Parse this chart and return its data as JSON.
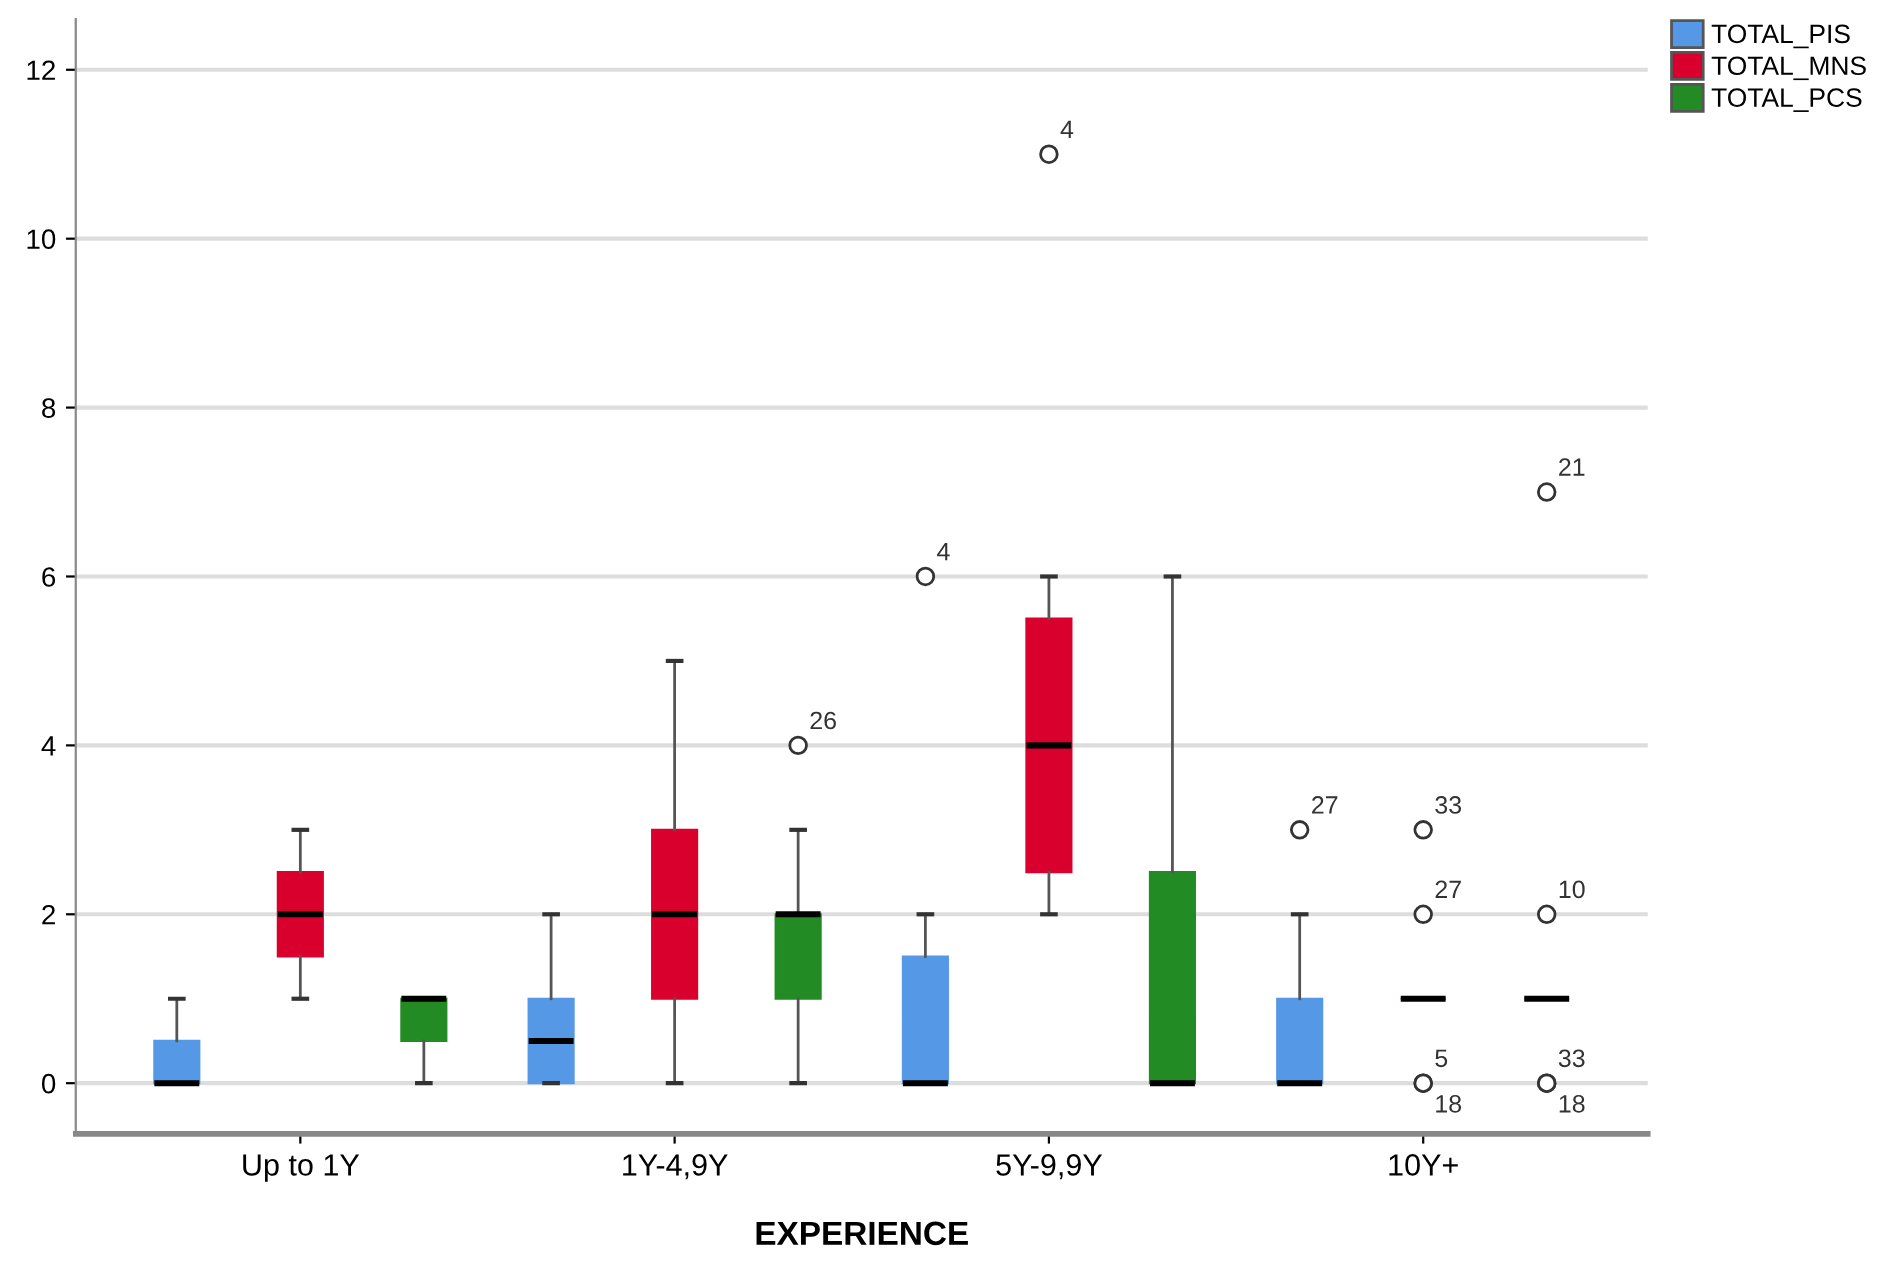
{
  "chart_data": {
    "type": "box",
    "xlabel": "EXPERIENCE",
    "categories": [
      "Up to 1Y",
      "1Y-4,9Y",
      "5Y-9,9Y",
      "10Y+"
    ],
    "series": [
      {
        "name": "TOTAL_PIS",
        "color": "#5599e6",
        "boxes": [
          {
            "low": 0,
            "q1": 0,
            "median": 0,
            "q3": 0.5,
            "high": 1
          },
          {
            "low": 0,
            "q1": 0,
            "median": 0.5,
            "q3": 1,
            "high": 2
          },
          {
            "low": 0,
            "q1": 0,
            "median": 0,
            "q3": 1.5,
            "high": 2,
            "outliers": [
              6
            ]
          },
          {
            "low": 0,
            "q1": 0,
            "median": 0,
            "q3": 1,
            "high": 2,
            "outliers": [
              3
            ]
          }
        ]
      },
      {
        "name": "TOTAL_MNS",
        "color": "#d9002d",
        "boxes": [
          {
            "low": 1,
            "q1": 1.5,
            "median": 2,
            "q3": 2.5,
            "high": 3
          },
          {
            "low": 0,
            "q1": 1,
            "median": 2,
            "q3": 3,
            "high": 5
          },
          {
            "low": 2,
            "q1": 2.5,
            "median": 4,
            "q3": 5.5,
            "high": 6,
            "outliers": [
              11
            ]
          },
          {
            "low": 1,
            "q1": 1,
            "median": 1,
            "q3": 1,
            "high": 1,
            "outliers": [
              3,
              2,
              0,
              0
            ]
          }
        ]
      },
      {
        "name": "TOTAL_PCS",
        "color": "#238b23",
        "boxes": [
          {
            "low": 0,
            "q1": 0.5,
            "median": 1,
            "q3": 1,
            "high": 1
          },
          {
            "low": 0,
            "q1": 1,
            "median": 2,
            "q3": 2,
            "high": 3,
            "outliers": [
              4
            ]
          },
          {
            "low": 0,
            "q1": 0,
            "median": 0,
            "q3": 2.5,
            "high": 6
          },
          {
            "low": 1,
            "q1": 1,
            "median": 1,
            "q3": 1,
            "high": 1,
            "outliers": [
              7,
              2,
              0,
              0
            ]
          }
        ]
      }
    ],
    "ylim": [
      -0.6,
      12.6
    ],
    "yticks": [
      0,
      2,
      4,
      6,
      8,
      10,
      12
    ],
    "grid": "y",
    "legend": "top right",
    "marker": "circle",
    "annotations": [
      "26",
      "4",
      "4",
      "27",
      "33",
      "27",
      "5",
      "18",
      "21",
      "10",
      "33",
      "18"
    ]
  }
}
